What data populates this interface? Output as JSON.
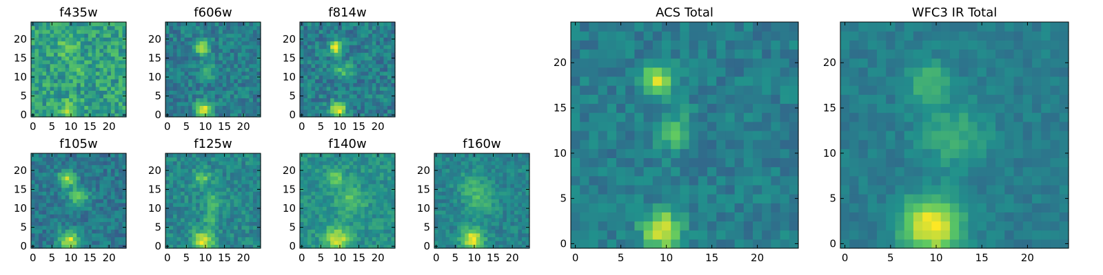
{
  "figure": {
    "background": "#ffffff",
    "colormap": "viridis",
    "colormap_stops": [
      "#440154",
      "#3b528b",
      "#21918c",
      "#5ec962",
      "#fde725"
    ]
  },
  "chart_data": [
    {
      "type": "heatmap",
      "title": "f435w",
      "xlabel": "",
      "ylabel": "",
      "xlim": [
        -0.5,
        24.5
      ],
      "ylim": [
        -0.5,
        24.5
      ],
      "xticks": [
        0,
        5,
        10,
        15,
        20
      ],
      "yticks": [
        0,
        5,
        10,
        15,
        20
      ],
      "grid_size": [
        25,
        25
      ],
      "noise": 0.16,
      "background": 0.56,
      "sources": [
        {
          "x": 9,
          "y": 18,
          "amp": 0.22,
          "sigma": 1.8
        },
        {
          "x": 11,
          "y": 12,
          "amp": 0.1,
          "sigma": 1.6
        },
        {
          "x": 9.5,
          "y": 1.5,
          "amp": 0.3,
          "sigma": 1.7
        }
      ]
    },
    {
      "type": "heatmap",
      "title": "f606w",
      "xlabel": "",
      "ylabel": "",
      "xlim": [
        -0.5,
        24.5
      ],
      "ylim": [
        -0.5,
        24.5
      ],
      "xticks": [
        0,
        5,
        10,
        15,
        20
      ],
      "yticks": [
        0,
        5,
        10,
        15,
        20
      ],
      "grid_size": [
        25,
        25
      ],
      "noise": 0.12,
      "background": 0.42,
      "sources": [
        {
          "x": 9,
          "y": 18,
          "amp": 0.5,
          "sigma": 1.3
        },
        {
          "x": 11,
          "y": 12,
          "amp": 0.22,
          "sigma": 1.5
        },
        {
          "x": 9.5,
          "y": 1.5,
          "amp": 0.55,
          "sigma": 1.5
        }
      ]
    },
    {
      "type": "heatmap",
      "title": "f814w",
      "xlabel": "",
      "ylabel": "",
      "xlim": [
        -0.5,
        24.5
      ],
      "ylim": [
        -0.5,
        24.5
      ],
      "xticks": [
        0,
        5,
        10,
        15,
        20
      ],
      "yticks": [
        0,
        5,
        10,
        15,
        20
      ],
      "grid_size": [
        25,
        25
      ],
      "noise": 0.13,
      "background": 0.42,
      "sources": [
        {
          "x": 9,
          "y": 18,
          "amp": 0.52,
          "sigma": 1.3
        },
        {
          "x": 11,
          "y": 12,
          "amp": 0.28,
          "sigma": 1.5
        },
        {
          "x": 9.5,
          "y": 1.5,
          "amp": 0.55,
          "sigma": 1.5
        }
      ]
    },
    {
      "type": "heatmap",
      "title": "f105w",
      "xlabel": "",
      "ylabel": "",
      "xlim": [
        -0.5,
        24.5
      ],
      "ylim": [
        -0.5,
        24.5
      ],
      "xticks": [
        0,
        5,
        10,
        15,
        20
      ],
      "yticks": [
        0,
        5,
        10,
        15,
        20
      ],
      "grid_size": [
        25,
        25
      ],
      "noise": 0.11,
      "background": 0.4,
      "sources": [
        {
          "x": 9,
          "y": 18,
          "amp": 0.5,
          "sigma": 1.5
        },
        {
          "x": 12,
          "y": 13,
          "amp": 0.3,
          "sigma": 2.0
        },
        {
          "x": 9.5,
          "y": 1.5,
          "amp": 0.55,
          "sigma": 1.8
        }
      ]
    },
    {
      "type": "heatmap",
      "title": "f125w",
      "xlabel": "",
      "ylabel": "",
      "xlim": [
        -0.5,
        24.5
      ],
      "ylim": [
        -0.5,
        24.5
      ],
      "xticks": [
        0,
        5,
        10,
        15,
        20
      ],
      "yticks": [
        0,
        5,
        10,
        15,
        20
      ],
      "grid_size": [
        25,
        25
      ],
      "noise": 0.11,
      "background": 0.46,
      "sources": [
        {
          "x": 9,
          "y": 18,
          "amp": 0.3,
          "sigma": 1.6
        },
        {
          "x": 12,
          "y": 12,
          "amp": 0.2,
          "sigma": 2.0
        },
        {
          "x": 11.5,
          "y": 7,
          "amp": 0.3,
          "sigma": 1.1
        },
        {
          "x": 9.5,
          "y": 1.5,
          "amp": 0.5,
          "sigma": 2.0
        }
      ]
    },
    {
      "type": "heatmap",
      "title": "f140w",
      "xlabel": "",
      "ylabel": "",
      "xlim": [
        -0.5,
        24.5
      ],
      "ylim": [
        -0.5,
        24.5
      ],
      "xticks": [
        0,
        5,
        10,
        15,
        20
      ],
      "yticks": [
        0,
        5,
        10,
        15,
        20
      ],
      "grid_size": [
        25,
        25
      ],
      "noise": 0.1,
      "background": 0.5,
      "sources": [
        {
          "x": 9,
          "y": 18,
          "amp": 0.28,
          "sigma": 1.6
        },
        {
          "x": 13,
          "y": 12,
          "amp": 0.22,
          "sigma": 2.5
        },
        {
          "x": 9.5,
          "y": 2,
          "amp": 0.45,
          "sigma": 2.2
        }
      ]
    },
    {
      "type": "heatmap",
      "title": "f160w",
      "xlabel": "",
      "ylabel": "",
      "xlim": [
        -0.5,
        24.5
      ],
      "ylim": [
        -0.5,
        24.5
      ],
      "xticks": [
        0,
        5,
        10,
        15,
        20
      ],
      "yticks": [
        0,
        5,
        10,
        15,
        20
      ],
      "grid_size": [
        25,
        25
      ],
      "noise": 0.09,
      "background": 0.45,
      "sources": [
        {
          "x": 9,
          "y": 16,
          "amp": 0.15,
          "sigma": 2.5
        },
        {
          "x": 12,
          "y": 12,
          "amp": 0.2,
          "sigma": 2.5
        },
        {
          "x": 9.5,
          "y": 2,
          "amp": 0.55,
          "sigma": 2.0
        }
      ]
    },
    {
      "type": "heatmap",
      "title": "ACS Total",
      "xlabel": "",
      "ylabel": "",
      "xlim": [
        -0.5,
        24.5
      ],
      "ylim": [
        -0.5,
        24.5
      ],
      "xticks": [
        0,
        5,
        10,
        15,
        20
      ],
      "yticks": [
        0,
        5,
        10,
        15,
        20
      ],
      "grid_size": [
        25,
        25
      ],
      "noise": 0.09,
      "background": 0.42,
      "sources": [
        {
          "x": 9,
          "y": 18,
          "amp": 0.55,
          "sigma": 1.2
        },
        {
          "x": 11,
          "y": 12.5,
          "amp": 0.28,
          "sigma": 1.4
        },
        {
          "x": 9.5,
          "y": 1.5,
          "amp": 0.6,
          "sigma": 1.4
        }
      ]
    },
    {
      "type": "heatmap",
      "title": "WFC3 IR Total",
      "xlabel": "",
      "ylabel": "",
      "xlim": [
        -0.5,
        24.5
      ],
      "ylim": [
        -0.5,
        24.5
      ],
      "xticks": [
        0,
        5,
        10,
        15,
        20
      ],
      "yticks": [
        0,
        5,
        10,
        15,
        20
      ],
      "grid_size": [
        25,
        25
      ],
      "noise": 0.06,
      "background": 0.42,
      "sources": [
        {
          "x": 9,
          "y": 18,
          "amp": 0.25,
          "sigma": 1.6
        },
        {
          "x": 12,
          "y": 12,
          "amp": 0.2,
          "sigma": 2.5
        },
        {
          "x": 9.5,
          "y": 2,
          "amp": 0.6,
          "sigma": 2.2
        }
      ]
    }
  ]
}
